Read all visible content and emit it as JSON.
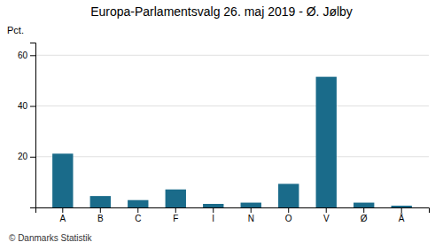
{
  "chart_data": {
    "type": "bar",
    "title": "Europa-Parlamentsvalg 26. maj 2019 - Ø. Jølby",
    "categories": [
      "A",
      "B",
      "C",
      "F",
      "I",
      "N",
      "O",
      "V",
      "Ø",
      "Å"
    ],
    "values": [
      21.2,
      4.5,
      2.9,
      7.1,
      1.4,
      1.9,
      9.3,
      51.5,
      1.9,
      0.7
    ],
    "color": "#1a6b8a",
    "ylabel": "Pct.",
    "ylim": [
      0,
      65
    ],
    "yticks": [
      20,
      40,
      60
    ],
    "grid": true,
    "annotations": [
      "© Danmarks Statistik"
    ]
  }
}
